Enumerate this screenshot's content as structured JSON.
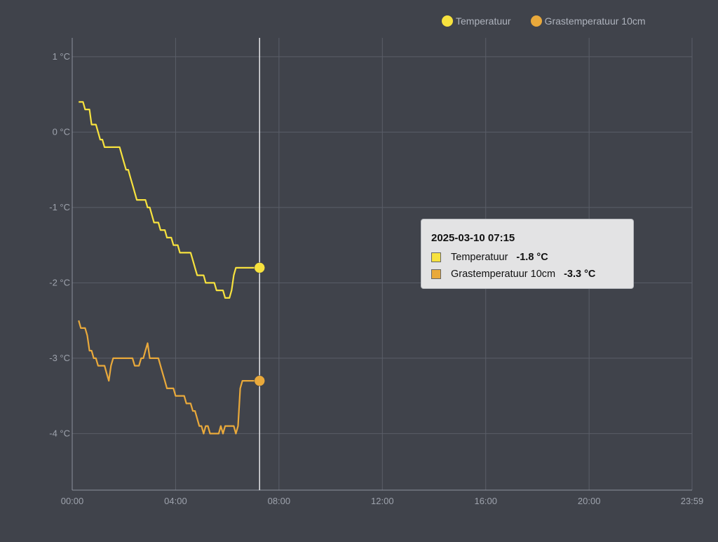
{
  "legend": [
    {
      "name": "Temperatuur",
      "color": "#f7e23e"
    },
    {
      "name": "Grastemperatuur 10cm",
      "color": "#e9a93b"
    }
  ],
  "tooltip": {
    "title": "2025-03-10 07:15",
    "rows": [
      {
        "name": "Temperatuur",
        "value": "-1.8 °C",
        "color": "#f7e23e"
      },
      {
        "name": "Grastemperatuur 10cm",
        "value": "-3.3 °C",
        "color": "#e9a93b"
      }
    ]
  },
  "chart_data": {
    "type": "line",
    "title": "",
    "xlabel": "",
    "ylabel": "",
    "grid": true,
    "legend_position": "top-right",
    "xlim": [
      "00:00",
      "23:59"
    ],
    "ylim": [
      -4.75,
      1.25
    ],
    "x_ticks": [
      "00:00",
      "04:00",
      "08:00",
      "12:00",
      "16:00",
      "20:00",
      "23:59"
    ],
    "y_ticks": [
      "1 °C",
      "0 °C",
      "-1 °C",
      "-2 °C",
      "-3 °C",
      "-4 °C"
    ],
    "crosshair_x": "07:15",
    "series": [
      {
        "name": "Temperatuur",
        "color": "#f7e23e",
        "x": [
          "00:15",
          "00:20",
          "00:25",
          "00:30",
          "00:35",
          "00:40",
          "00:45",
          "00:50",
          "00:55",
          "01:00",
          "01:05",
          "01:10",
          "01:15",
          "01:20",
          "01:25",
          "01:30",
          "01:35",
          "01:40",
          "01:45",
          "01:50",
          "01:55",
          "02:00",
          "02:05",
          "02:10",
          "02:15",
          "02:20",
          "02:25",
          "02:30",
          "02:35",
          "02:40",
          "02:45",
          "02:50",
          "02:55",
          "03:00",
          "03:05",
          "03:10",
          "03:15",
          "03:20",
          "03:25",
          "03:30",
          "03:35",
          "03:40",
          "03:45",
          "03:50",
          "03:55",
          "04:00",
          "04:05",
          "04:10",
          "04:15",
          "04:20",
          "04:25",
          "04:30",
          "04:35",
          "04:40",
          "04:45",
          "04:50",
          "04:55",
          "05:00",
          "05:05",
          "05:10",
          "05:15",
          "05:20",
          "05:25",
          "05:30",
          "05:35",
          "05:40",
          "05:45",
          "05:50",
          "05:55",
          "06:00",
          "06:05",
          "06:10",
          "06:15",
          "06:20",
          "06:25",
          "06:30",
          "06:35",
          "06:40",
          "06:45",
          "06:50",
          "06:55",
          "07:00",
          "07:05",
          "07:10",
          "07:15"
        ],
        "values": [
          0.4,
          0.4,
          0.4,
          0.3,
          0.3,
          0.3,
          0.1,
          0.1,
          0.1,
          0.0,
          -0.1,
          -0.1,
          -0.2,
          -0.2,
          -0.2,
          -0.2,
          -0.2,
          -0.2,
          -0.2,
          -0.2,
          -0.3,
          -0.4,
          -0.5,
          -0.5,
          -0.6,
          -0.7,
          -0.8,
          -0.9,
          -0.9,
          -0.9,
          -0.9,
          -0.9,
          -1.0,
          -1.0,
          -1.1,
          -1.2,
          -1.2,
          -1.2,
          -1.3,
          -1.3,
          -1.3,
          -1.4,
          -1.4,
          -1.4,
          -1.5,
          -1.5,
          -1.5,
          -1.6,
          -1.6,
          -1.6,
          -1.6,
          -1.6,
          -1.6,
          -1.7,
          -1.8,
          -1.9,
          -1.9,
          -1.9,
          -1.9,
          -2.0,
          -2.0,
          -2.0,
          -2.0,
          -2.0,
          -2.1,
          -2.1,
          -2.1,
          -2.1,
          -2.2,
          -2.2,
          -2.2,
          -2.1,
          -1.9,
          -1.8,
          -1.8,
          -1.8,
          -1.8,
          -1.8,
          -1.8,
          -1.8,
          -1.8,
          -1.8,
          -1.8,
          -1.8,
          -1.8
        ]
      },
      {
        "name": "Grastemperatuur 10cm",
        "color": "#e9a93b",
        "x": [
          "00:15",
          "00:20",
          "00:25",
          "00:30",
          "00:35",
          "00:40",
          "00:45",
          "00:50",
          "00:55",
          "01:00",
          "01:05",
          "01:10",
          "01:15",
          "01:20",
          "01:25",
          "01:30",
          "01:35",
          "01:40",
          "01:45",
          "01:50",
          "01:55",
          "02:00",
          "02:05",
          "02:10",
          "02:15",
          "02:20",
          "02:25",
          "02:30",
          "02:35",
          "02:40",
          "02:45",
          "02:50",
          "02:55",
          "03:00",
          "03:05",
          "03:10",
          "03:15",
          "03:20",
          "03:25",
          "03:30",
          "03:35",
          "03:40",
          "03:45",
          "03:50",
          "03:55",
          "04:00",
          "04:05",
          "04:10",
          "04:15",
          "04:20",
          "04:25",
          "04:30",
          "04:35",
          "04:40",
          "04:45",
          "04:50",
          "04:55",
          "05:00",
          "05:05",
          "05:10",
          "05:15",
          "05:20",
          "05:25",
          "05:30",
          "05:35",
          "05:40",
          "05:45",
          "05:50",
          "05:55",
          "06:00",
          "06:05",
          "06:10",
          "06:15",
          "06:20",
          "06:25",
          "06:30",
          "06:35",
          "06:40",
          "06:45",
          "06:50",
          "06:55",
          "07:00",
          "07:05",
          "07:10",
          "07:15"
        ],
        "values": [
          -2.5,
          -2.6,
          -2.6,
          -2.6,
          -2.7,
          -2.9,
          -2.9,
          -3.0,
          -3.0,
          -3.1,
          -3.1,
          -3.1,
          -3.1,
          -3.2,
          -3.3,
          -3.1,
          -3.0,
          -3.0,
          -3.0,
          -3.0,
          -3.0,
          -3.0,
          -3.0,
          -3.0,
          -3.0,
          -3.0,
          -3.1,
          -3.1,
          -3.1,
          -3.0,
          -3.0,
          -2.9,
          -2.8,
          -3.0,
          -3.0,
          -3.0,
          -3.0,
          -3.0,
          -3.1,
          -3.2,
          -3.3,
          -3.4,
          -3.4,
          -3.4,
          -3.4,
          -3.5,
          -3.5,
          -3.5,
          -3.5,
          -3.5,
          -3.6,
          -3.6,
          -3.6,
          -3.7,
          -3.7,
          -3.8,
          -3.9,
          -3.9,
          -4.0,
          -3.9,
          -3.9,
          -4.0,
          -4.0,
          -4.0,
          -4.0,
          -4.0,
          -3.9,
          -4.0,
          -3.9,
          -3.9,
          -3.9,
          -3.9,
          -3.9,
          -4.0,
          -3.9,
          -3.4,
          -3.3,
          -3.3,
          -3.3,
          -3.3,
          -3.3,
          -3.3,
          -3.3,
          -3.3,
          -3.3
        ]
      }
    ]
  }
}
